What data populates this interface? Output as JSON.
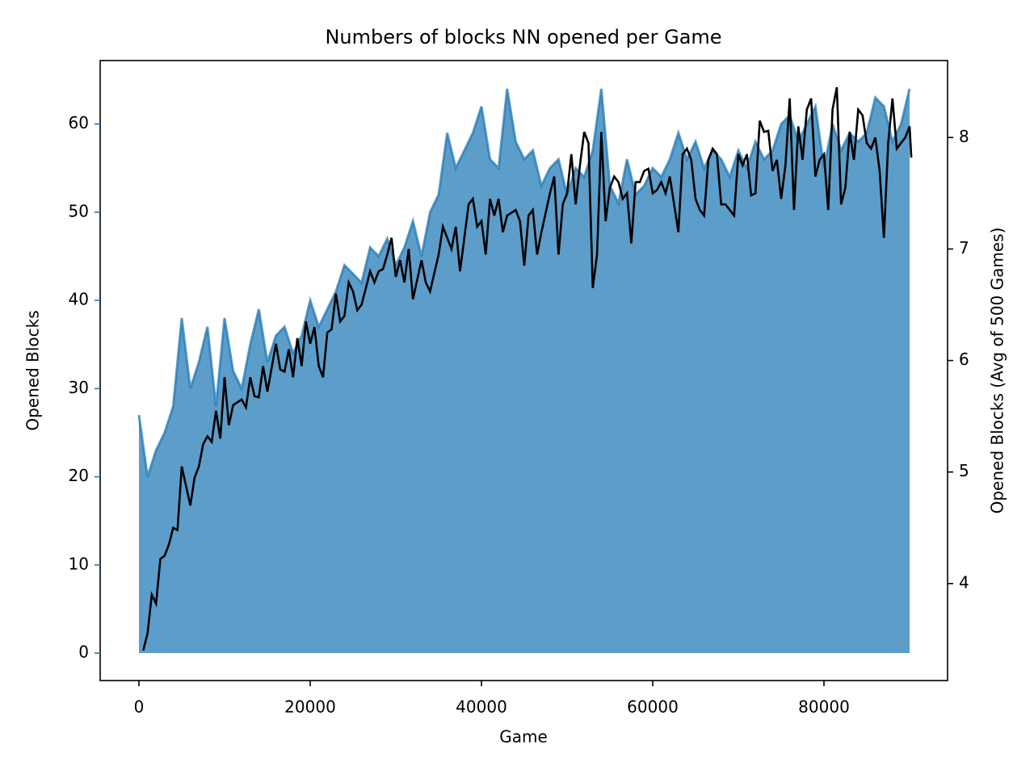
{
  "chart_data": {
    "type": "line",
    "title": "Numbers of blocks NN opened per Game",
    "xlabel": "Game",
    "ylabel": "Opened Blocks",
    "y2label": "Opened Blocks (Avg of 500 Games)",
    "xlim": [
      -4528,
      94434
    ],
    "xticks": [
      0,
      20000,
      40000,
      60000,
      80000
    ],
    "ylim": [
      -3.11,
      67.2
    ],
    "yticks": [
      0,
      10,
      20,
      30,
      40,
      50,
      60
    ],
    "y2lim": [
      3.13,
      8.69
    ],
    "y2ticks": [
      4,
      5,
      6,
      7,
      8
    ],
    "ylabel_color": "#1f77b4",
    "series": [
      {
        "color": "#1f77b4",
        "fill": true,
        "opacity": 0.72,
        "axis": "y",
        "x": [
          0,
          1000,
          2000,
          3000,
          4000,
          5000,
          6000,
          7000,
          8000,
          9000,
          10000,
          11000,
          12000,
          13000,
          14000,
          15000,
          16000,
          17000,
          18000,
          19000,
          20000,
          21000,
          22000,
          23000,
          24000,
          25000,
          26000,
          27000,
          28000,
          29000,
          30000,
          31000,
          32000,
          33000,
          34000,
          35000,
          36000,
          37000,
          38000,
          39000,
          40000,
          41000,
          42000,
          43000,
          44000,
          45000,
          46000,
          47000,
          48000,
          49000,
          50000,
          51000,
          52000,
          53000,
          54000,
          55000,
          56000,
          57000,
          58000,
          59000,
          60000,
          61000,
          62000,
          63000,
          64000,
          65000,
          66000,
          67000,
          68000,
          69000,
          70000,
          71000,
          72000,
          73000,
          74000,
          75000,
          76000,
          77000,
          78000,
          79000,
          80000,
          81000,
          82000,
          83000,
          84000,
          85000,
          86000,
          87000,
          88000,
          89000,
          90000
        ],
        "values": [
          27,
          20,
          23,
          25,
          28,
          38,
          30,
          33,
          37,
          28,
          38,
          32,
          30,
          35,
          39,
          33,
          36,
          37,
          34,
          36,
          40,
          37,
          39,
          41,
          44,
          43,
          42,
          46,
          45,
          47,
          44,
          46,
          49,
          45,
          50,
          52,
          59,
          55,
          57,
          59,
          62,
          56,
          55,
          64,
          58,
          56,
          57,
          53,
          55,
          56,
          52,
          55,
          54,
          57,
          64,
          53,
          51,
          56,
          52,
          53,
          55,
          54,
          56,
          59,
          56,
          58,
          55,
          57,
          56,
          54,
          57,
          55,
          58,
          56,
          57,
          60,
          61,
          58,
          60,
          62,
          55,
          60,
          57,
          59,
          58,
          59,
          63,
          62,
          58,
          60,
          64
        ]
      },
      {
        "color": "#000000",
        "fill": false,
        "axis": "y2",
        "x": [
          500,
          1000,
          1500,
          2000,
          2500,
          3000,
          3500,
          4000,
          4500,
          5000,
          6000,
          6500,
          7000,
          7500,
          8000,
          8500,
          9000,
          9500,
          10000,
          10500,
          11000,
          12000,
          12500,
          13000,
          13500,
          14000,
          14500,
          15000,
          16000,
          16500,
          17000,
          17500,
          18000,
          18500,
          19000,
          19500,
          20000,
          20500,
          21000,
          21500,
          22000,
          22500,
          23000,
          23500,
          24000,
          24500,
          25000,
          25500,
          26000,
          26500,
          27000,
          27500,
          28000,
          28500,
          29000,
          29500,
          30000,
          30500,
          31000,
          31500,
          32000,
          33000,
          33500,
          34000,
          35000,
          35500,
          36000,
          36500,
          37000,
          37500,
          38500,
          39000,
          39500,
          40000,
          40500,
          41000,
          41500,
          42000,
          42500,
          43000,
          44000,
          44500,
          45000,
          45500,
          46000,
          46500,
          47000,
          48000,
          48500,
          49000,
          49500,
          50000,
          50500,
          51000,
          51500,
          52000,
          52500,
          53000,
          53500,
          54000,
          54500,
          55000,
          55500,
          56000,
          56500,
          57000,
          57500,
          58000,
          58500,
          59000,
          59500,
          60000,
          60500,
          61000,
          61500,
          62000,
          63000,
          63500,
          64000,
          64500,
          65000,
          65500,
          66000,
          66500,
          67000,
          67500,
          68000,
          68500,
          69500,
          70000,
          70500,
          71000,
          71500,
          72000,
          72500,
          73000,
          73500,
          74000,
          74500,
          75000,
          75500,
          76000,
          76500,
          77000,
          77500,
          78000,
          78500,
          79000,
          79500,
          80000,
          80500,
          81000,
          81500,
          82000,
          82500,
          83000,
          83500,
          84000,
          84500,
          85000,
          85500,
          86000,
          86500,
          87000,
          87500,
          88000,
          88500,
          89000,
          89500,
          90000,
          90200
        ],
        "values": [
          3.4,
          3.55,
          3.9,
          3.82,
          4.22,
          4.25,
          4.35,
          4.5,
          4.48,
          5.05,
          4.7,
          4.95,
          5.05,
          5.25,
          5.32,
          5.27,
          5.55,
          5.3,
          5.85,
          5.42,
          5.6,
          5.65,
          5.58,
          5.85,
          5.68,
          5.67,
          5.95,
          5.72,
          6.15,
          5.92,
          5.9,
          6.1,
          5.85,
          6.2,
          5.95,
          6.35,
          6.15,
          6.3,
          5.95,
          5.85,
          6.25,
          6.28,
          6.6,
          6.35,
          6.4,
          6.7,
          6.62,
          6.45,
          6.5,
          6.65,
          6.8,
          6.7,
          6.8,
          6.82,
          6.95,
          7.1,
          6.75,
          6.9,
          6.7,
          7.0,
          6.55,
          6.9,
          6.7,
          6.62,
          6.95,
          7.2,
          7.1,
          7.0,
          7.2,
          6.8,
          7.4,
          7.45,
          7.2,
          7.25,
          6.95,
          7.45,
          7.3,
          7.45,
          7.15,
          7.3,
          7.35,
          7.25,
          6.85,
          7.3,
          7.35,
          6.95,
          7.15,
          7.5,
          7.65,
          6.95,
          7.4,
          7.5,
          7.85,
          7.4,
          7.75,
          8.05,
          7.95,
          6.65,
          6.95,
          8.05,
          7.25,
          7.55,
          7.65,
          7.6,
          7.45,
          7.5,
          7.05,
          7.6,
          7.6,
          7.7,
          7.72,
          7.5,
          7.53,
          7.6,
          7.5,
          7.65,
          7.15,
          7.85,
          7.9,
          7.8,
          7.45,
          7.35,
          7.3,
          7.8,
          7.9,
          7.85,
          7.4,
          7.4,
          7.3,
          7.85,
          7.75,
          7.85,
          7.48,
          7.5,
          8.15,
          8.05,
          8.06,
          7.7,
          7.8,
          7.45,
          7.75,
          8.35,
          7.35,
          8.1,
          7.8,
          8.25,
          8.35,
          7.65,
          7.8,
          7.85,
          7.35,
          8.25,
          8.45,
          7.4,
          7.55,
          8.05,
          7.8,
          8.25,
          8.2,
          7.95,
          7.9,
          8.0,
          7.7,
          7.1,
          7.95,
          8.35,
          7.9,
          7.95,
          8.0,
          8.1,
          7.82
        ]
      }
    ]
  }
}
